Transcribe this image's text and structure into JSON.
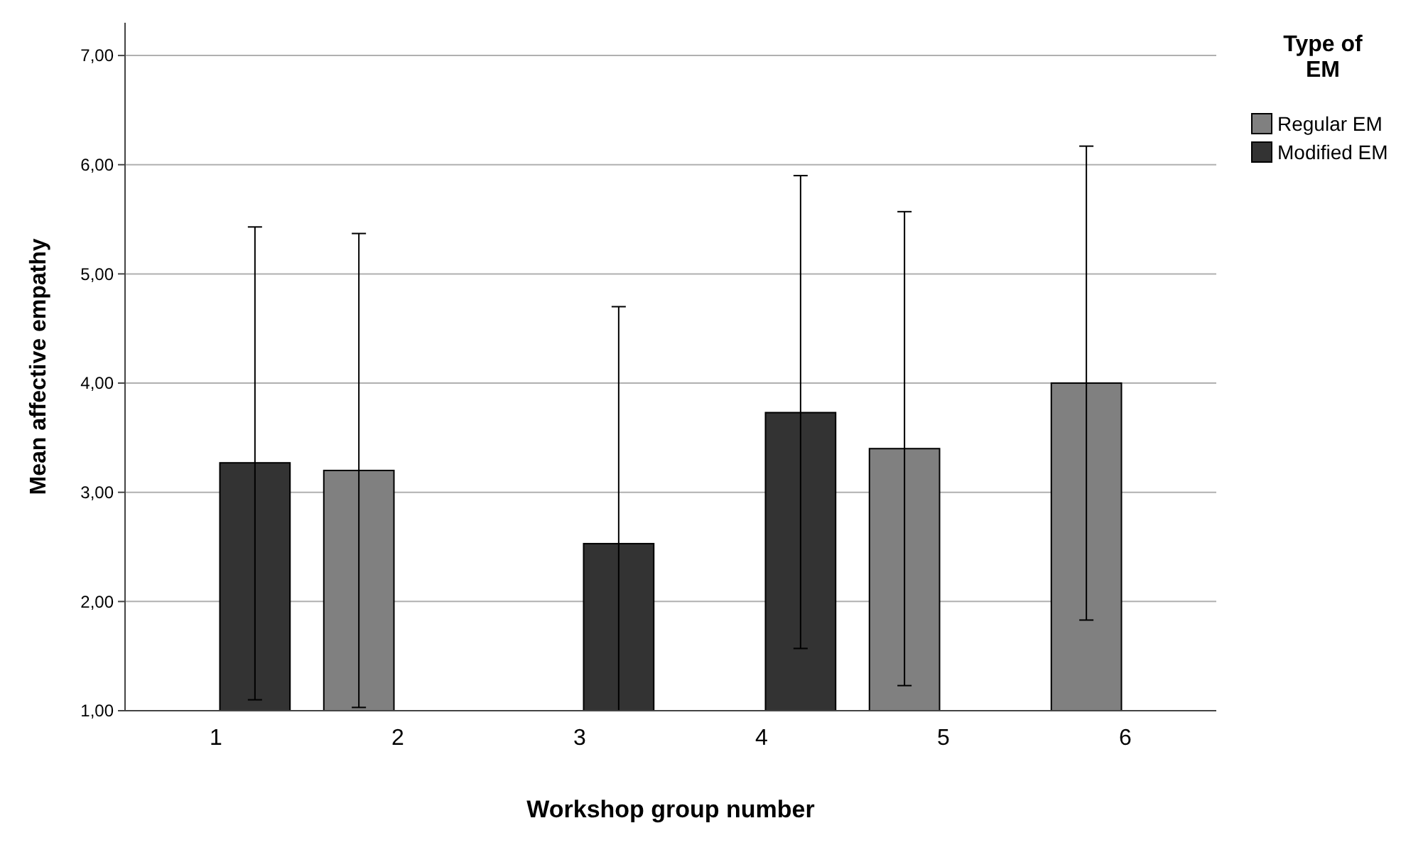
{
  "chart_data": {
    "type": "bar",
    "xlabel": "Workshop group number",
    "ylabel": "Mean affective empathy",
    "legend_title": "Type of EM",
    "categories": [
      "1",
      "2",
      "3",
      "4",
      "5",
      "6"
    ],
    "series": [
      {
        "name": "Regular EM",
        "color": "#808080",
        "values": [
          null,
          3.2,
          null,
          null,
          3.4,
          4.0
        ],
        "errors": [
          null,
          [
            1.03,
            5.37
          ],
          null,
          null,
          [
            1.23,
            5.57
          ],
          [
            1.83,
            6.17
          ]
        ]
      },
      {
        "name": "Modified EM",
        "color": "#333333",
        "values": [
          3.27,
          null,
          2.53,
          3.73,
          null,
          null
        ],
        "errors": [
          [
            1.1,
            5.43
          ],
          null,
          [
            1.0,
            4.7
          ],
          [
            1.57,
            5.9
          ],
          null,
          null
        ]
      }
    ],
    "ylim": [
      1,
      7.3
    ],
    "yticks": [
      {
        "value": 1,
        "label": "1,00"
      },
      {
        "value": 2,
        "label": "2,00"
      },
      {
        "value": 3,
        "label": "3,00"
      },
      {
        "value": 4,
        "label": "4,00"
      },
      {
        "value": 5,
        "label": "5,00"
      },
      {
        "value": 6,
        "label": "6,00"
      },
      {
        "value": 7,
        "label": "7,00"
      }
    ],
    "grid": "y",
    "legend": "top right"
  }
}
